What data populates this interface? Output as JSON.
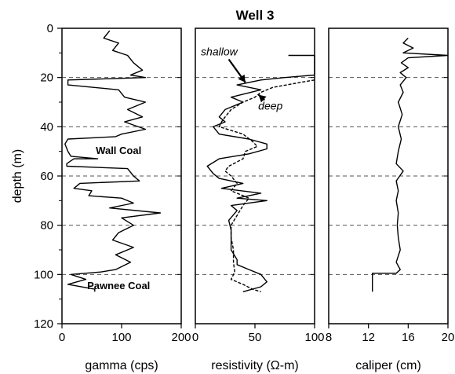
{
  "chart_data": {
    "type": "line",
    "title": "Well 3",
    "ylabel": "depth (m)",
    "y_inverted": true,
    "ylim": [
      0,
      120
    ],
    "y_ticks": [
      "0",
      "20",
      "40",
      "60",
      "80",
      "100",
      "120"
    ],
    "depth_gridlines": [
      0,
      20,
      40,
      60,
      80,
      100
    ],
    "gridline_style": "dashed",
    "tracks": [
      {
        "id": "gamma",
        "xlabel": "gamma (cps)",
        "xlim": [
          0,
          200
        ],
        "x_ticks": [
          "0",
          "100",
          "200"
        ],
        "annotations": [
          {
            "text": "Wall Coal",
            "x": 95,
            "depth": 51
          },
          {
            "text": "Pawnee Coal",
            "x": 95,
            "depth": 106
          }
        ],
        "series": [
          {
            "style": "solid",
            "points": [
              [
                80,
                1
              ],
              [
                70,
                4
              ],
              [
                95,
                6
              ],
              [
                85,
                9
              ],
              [
                110,
                11
              ],
              [
                120,
                14
              ],
              [
                135,
                17
              ],
              [
                115,
                19
              ],
              [
                140,
                20
              ],
              [
                10,
                21
              ],
              [
                10,
                23
              ],
              [
                95,
                25
              ],
              [
                105,
                28
              ],
              [
                140,
                30
              ],
              [
                110,
                33
              ],
              [
                135,
                36
              ],
              [
                105,
                38
              ],
              [
                140,
                41
              ],
              [
                100,
                43
              ],
              [
                90,
                44
              ],
              [
                10,
                45
              ],
              [
                5,
                47
              ],
              [
                10,
                50
              ],
              [
                15,
                52
              ],
              [
                60,
                53
              ],
              [
                20,
                53
              ],
              [
                8,
                55
              ],
              [
                8,
                56
              ],
              [
                110,
                57
              ],
              [
                120,
                60
              ],
              [
                130,
                62
              ],
              [
                30,
                63
              ],
              [
                20,
                65
              ],
              [
                50,
                66
              ],
              [
                45,
                68
              ],
              [
                100,
                69
              ],
              [
                120,
                71
              ],
              [
                80,
                73
              ],
              [
                165,
                75
              ],
              [
                100,
                77
              ],
              [
                120,
                80
              ],
              [
                95,
                83
              ],
              [
                85,
                86
              ],
              [
                120,
                89
              ],
              [
                90,
                92
              ],
              [
                115,
                95
              ],
              [
                90,
                98
              ],
              [
                65,
                99
              ],
              [
                15,
                100
              ],
              [
                40,
                102
              ],
              [
                10,
                104
              ],
              [
                55,
                106
              ],
              [
                55,
                107
              ]
            ]
          }
        ]
      },
      {
        "id": "resistivity",
        "xlabel": "resistivity (Ω-m)",
        "xlim": [
          0,
          100
        ],
        "x_ticks": [
          "0",
          "50",
          "100"
        ],
        "annotations": [
          {
            "text": "shallow",
            "x": 20,
            "depth": 11,
            "arrow_to_depth": 22,
            "arrow_to_x": 42
          },
          {
            "text": "deep",
            "x": 63,
            "depth": 33,
            "arrow_to_depth": 27,
            "arrow_to_x": 53
          }
        ],
        "series": [
          {
            "name": "shallow",
            "style": "solid",
            "points": [
              [
                78,
                11
              ],
              [
                100,
                11
              ],
              [
                100,
                19
              ],
              [
                75,
                20
              ],
              [
                55,
                21
              ],
              [
                35,
                23
              ],
              [
                55,
                25
              ],
              [
                30,
                28
              ],
              [
                40,
                30
              ],
              [
                25,
                33
              ],
              [
                20,
                36
              ],
              [
                25,
                38
              ],
              [
                15,
                40
              ],
              [
                20,
                43
              ],
              [
                45,
                45
              ],
              [
                60,
                47
              ],
              [
                60,
                49
              ],
              [
                45,
                51
              ],
              [
                20,
                53
              ],
              [
                10,
                56
              ],
              [
                15,
                59
              ],
              [
                20,
                61
              ],
              [
                40,
                63
              ],
              [
                22,
                65
              ],
              [
                55,
                67
              ],
              [
                35,
                69
              ],
              [
                60,
                70
              ],
              [
                30,
                72
              ],
              [
                35,
                74
              ],
              [
                28,
                78
              ],
              [
                30,
                82
              ],
              [
                30,
                86
              ],
              [
                30,
                90
              ],
              [
                35,
                94
              ],
              [
                35,
                96
              ],
              [
                45,
                98
              ],
              [
                55,
                100
              ],
              [
                60,
                103
              ],
              [
                55,
                105
              ],
              [
                40,
                107
              ]
            ]
          },
          {
            "name": "deep",
            "style": "dashed",
            "points": [
              [
                100,
                21
              ],
              [
                88,
                22
              ],
              [
                65,
                24
              ],
              [
                55,
                26
              ],
              [
                50,
                28
              ],
              [
                40,
                30
              ],
              [
                30,
                33
              ],
              [
                25,
                36
              ],
              [
                22,
                38
              ],
              [
                20,
                40
              ],
              [
                40,
                43
              ],
              [
                48,
                46
              ],
              [
                52,
                48
              ],
              [
                42,
                50
              ],
              [
                40,
                53
              ],
              [
                28,
                56
              ],
              [
                25,
                58
              ],
              [
                30,
                60
              ],
              [
                35,
                63
              ],
              [
                30,
                66
              ],
              [
                45,
                69
              ],
              [
                40,
                72
              ],
              [
                35,
                76
              ],
              [
                30,
                80
              ],
              [
                30,
                85
              ],
              [
                32,
                90
              ],
              [
                32,
                95
              ],
              [
                33,
                99
              ],
              [
                30,
                102
              ],
              [
                40,
                104
              ],
              [
                48,
                106
              ],
              [
                55,
                107
              ]
            ]
          }
        ]
      },
      {
        "id": "caliper",
        "xlabel": "caliper (cm)",
        "xlim": [
          8,
          20
        ],
        "x_ticks": [
          "8",
          "12",
          "16",
          "20"
        ],
        "annotations": [],
        "series": [
          {
            "style": "solid",
            "points": [
              [
                16,
                4
              ],
              [
                15.5,
                6
              ],
              [
                16.5,
                8
              ],
              [
                15.5,
                10
              ],
              [
                20,
                11
              ],
              [
                16,
                12
              ],
              [
                15.3,
                14
              ],
              [
                16,
                16
              ],
              [
                15.2,
                18
              ],
              [
                15.8,
                20
              ],
              [
                15.2,
                23
              ],
              [
                15.5,
                26
              ],
              [
                15,
                30
              ],
              [
                15.4,
                35
              ],
              [
                15,
                40
              ],
              [
                15.3,
                45
              ],
              [
                15,
                50
              ],
              [
                14.8,
                55
              ],
              [
                15.5,
                58
              ],
              [
                14.8,
                62
              ],
              [
                15,
                66
              ],
              [
                14.8,
                70
              ],
              [
                15,
                75
              ],
              [
                14.9,
                80
              ],
              [
                15,
                85
              ],
              [
                15.2,
                90
              ],
              [
                14.8,
                95
              ],
              [
                15.2,
                98
              ],
              [
                14.8,
                99.5
              ],
              [
                12.4,
                99.5
              ],
              [
                12.4,
                107
              ]
            ]
          }
        ]
      }
    ]
  }
}
